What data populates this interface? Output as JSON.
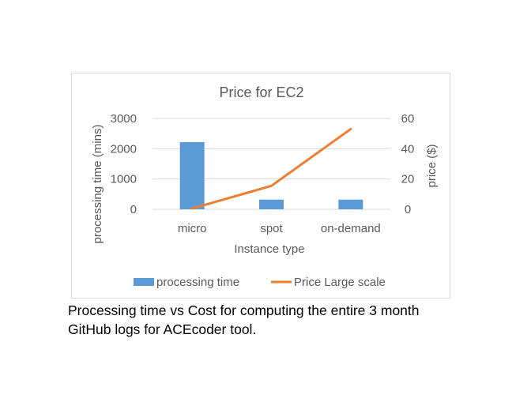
{
  "chart_data": {
    "type": "bar",
    "title": "Price for EC2",
    "categories": [
      "micro",
      "spot",
      "on-demand"
    ],
    "xlabel": "Instance type",
    "ylabel": "processing time (mins)",
    "y2label": "price ($)",
    "ylim": [
      0,
      3000
    ],
    "y2lim": [
      0,
      60
    ],
    "yticks": [
      "0",
      "1000",
      "2000",
      "3000"
    ],
    "y2ticks": [
      "0",
      "20",
      "40",
      "60"
    ],
    "grid": true,
    "legend_position": "bottom",
    "series": [
      {
        "name": "processing time",
        "type": "bar",
        "axis": "left",
        "color": "#5B9BD5",
        "values": [
          2220,
          320,
          320
        ]
      },
      {
        "name": "Price Large scale",
        "type": "line",
        "axis": "right",
        "color": "#ED7D31",
        "values": [
          0.5,
          15.5,
          53
        ]
      }
    ]
  },
  "caption": {
    "line1": "Processing time vs Cost for computing the entire 3 month",
    "line2": "GitHub logs for ACEcoder tool."
  }
}
